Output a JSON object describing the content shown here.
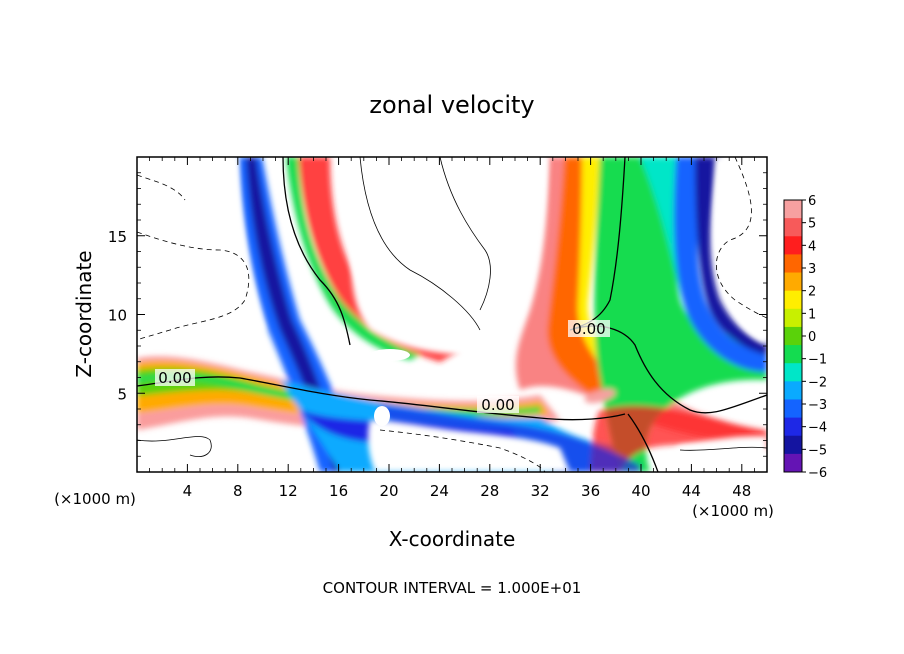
{
  "chart_data": {
    "type": "heatmap",
    "title": "zonal velocity",
    "xlabel": "X-coordinate",
    "ylabel": "Z-coordinate",
    "x_unit": "(×1000 m)",
    "y_unit": "(×1000 m)",
    "xlim": [
      0,
      50
    ],
    "ylim": [
      0,
      20
    ],
    "x_ticks": [
      4,
      8,
      12,
      16,
      20,
      24,
      28,
      32,
      36,
      40,
      44,
      48
    ],
    "y_ticks": [
      5,
      10,
      15
    ],
    "footnote": "CONTOUR INTERVAL = 1.000E+01",
    "contour_labels": [
      {
        "text": "0.00",
        "x": 3.2,
        "y": 5.8
      },
      {
        "text": "0.00",
        "x": 28.8,
        "y": 4.4
      },
      {
        "text": "0.00",
        "x": 36.2,
        "y": 9.1
      }
    ],
    "colorbar": {
      "ticks": [
        "6",
        "5",
        "4",
        "3",
        "2",
        "1",
        "0",
        "−1",
        "−2",
        "−3",
        "−4",
        "−5",
        "−6"
      ],
      "colors": [
        "#f7a0a0",
        "#f75a5a",
        "#ff1e1e",
        "#ff6600",
        "#ffaa00",
        "#ffee00",
        "#c8f000",
        "#5ad20a",
        "#14dc50",
        "#00e6c8",
        "#0aaaff",
        "#1464ff",
        "#1e28e6",
        "#1414a0",
        "#6414b4"
      ]
    }
  }
}
